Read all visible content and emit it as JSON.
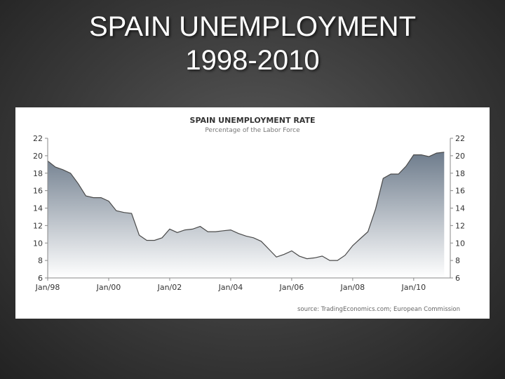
{
  "slide": {
    "title_line1": "SPAIN UNEMPLOYMENT",
    "title_line2": "1998-2010"
  },
  "chart_data": {
    "type": "area",
    "title": "SPAIN UNEMPLOYMENT RATE",
    "subtitle": "Percentage of the Labor Force",
    "source": "source: TradingEconomics.com; European Commission",
    "x_tick_labels": [
      "Jan/98",
      "Jan/00",
      "Jan/02",
      "Jan/04",
      "Jan/06",
      "Jan/08",
      "Jan/10"
    ],
    "x_tick_years": [
      1998,
      2000,
      2002,
      2004,
      2006,
      2008,
      2010
    ],
    "xlim": [
      1998,
      2011.2
    ],
    "ylim": [
      6,
      22
    ],
    "y_ticks": [
      6,
      8,
      10,
      12,
      14,
      16,
      18,
      20,
      22
    ],
    "grid": false,
    "legend": "none",
    "colors": {
      "area_top": "#6e7c8c",
      "area_bottom": "#ffffff",
      "line": "#4a4a4a"
    },
    "series": [
      {
        "x": [
          1998.0,
          1998.25,
          1998.5,
          1998.75,
          1999.0,
          1999.25,
          1999.5,
          1999.75,
          2000.0,
          2000.25,
          2000.5,
          2000.75,
          2001.0,
          2001.25,
          2001.5,
          2001.75,
          2002.0,
          2002.25,
          2002.5,
          2002.75,
          2003.0,
          2003.25,
          2003.5,
          2003.75,
          2004.0,
          2004.25,
          2004.5,
          2004.75,
          2005.0,
          2005.25,
          2005.5,
          2005.75,
          2006.0,
          2006.25,
          2006.5,
          2006.75,
          2007.0,
          2007.25,
          2007.5,
          2007.75,
          2008.0,
          2008.25,
          2008.5,
          2008.75,
          2009.0,
          2009.25,
          2009.5,
          2009.75,
          2010.0,
          2010.25,
          2010.5,
          2010.75,
          2011.0
        ],
        "values": [
          19.4,
          18.7,
          18.4,
          18.0,
          16.8,
          15.4,
          15.2,
          15.2,
          14.8,
          13.7,
          13.5,
          13.4,
          10.9,
          10.3,
          10.3,
          10.6,
          11.6,
          11.2,
          11.5,
          11.6,
          11.9,
          11.3,
          11.3,
          11.4,
          11.5,
          11.1,
          10.8,
          10.6,
          10.2,
          9.3,
          8.4,
          8.7,
          9.1,
          8.5,
          8.2,
          8.3,
          8.5,
          8.0,
          8.0,
          8.6,
          9.7,
          10.5,
          11.3,
          13.9,
          17.4,
          17.9,
          17.9,
          18.8,
          20.1,
          20.1,
          19.9,
          20.3,
          20.4
        ]
      }
    ]
  }
}
